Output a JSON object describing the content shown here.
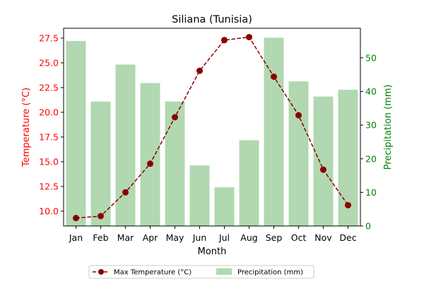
{
  "chart_data": {
    "type": "bar",
    "title": "Siliana (Tunisia)",
    "xlabel": "Month",
    "categories": [
      "Jan",
      "Feb",
      "Mar",
      "Apr",
      "May",
      "Jun",
      "Jul",
      "Aug",
      "Sep",
      "Oct",
      "Nov",
      "Dec"
    ],
    "series": [
      {
        "name": "Max Temperature (°C)",
        "type": "line",
        "axis": "left",
        "values": [
          9.3,
          9.5,
          11.9,
          14.8,
          19.5,
          24.2,
          27.3,
          27.6,
          23.6,
          19.7,
          14.2,
          10.6
        ],
        "color": "#8b0000"
      },
      {
        "name": "Precipitation (mm)",
        "type": "bar",
        "axis": "right",
        "values": [
          55,
          37,
          48,
          42.5,
          37,
          18,
          11.5,
          25.5,
          56,
          43,
          38.5,
          40.5
        ],
        "color": "#b1d8b1"
      }
    ],
    "y_left": {
      "label": "Temperature (°C)",
      "range": [
        8.5,
        28.5
      ],
      "ticks": [
        "10.0",
        "12.5",
        "15.0",
        "17.5",
        "20.0",
        "22.5",
        "25.0",
        "27.5"
      ],
      "color": "#ff0000"
    },
    "y_right": {
      "label": "Precipitation (mm)",
      "range": [
        0,
        58.8
      ],
      "ticks": [
        "0",
        "10",
        "20",
        "30",
        "40",
        "50"
      ],
      "color": "#008000"
    },
    "grid": false,
    "legend_position": "bottom-center"
  }
}
